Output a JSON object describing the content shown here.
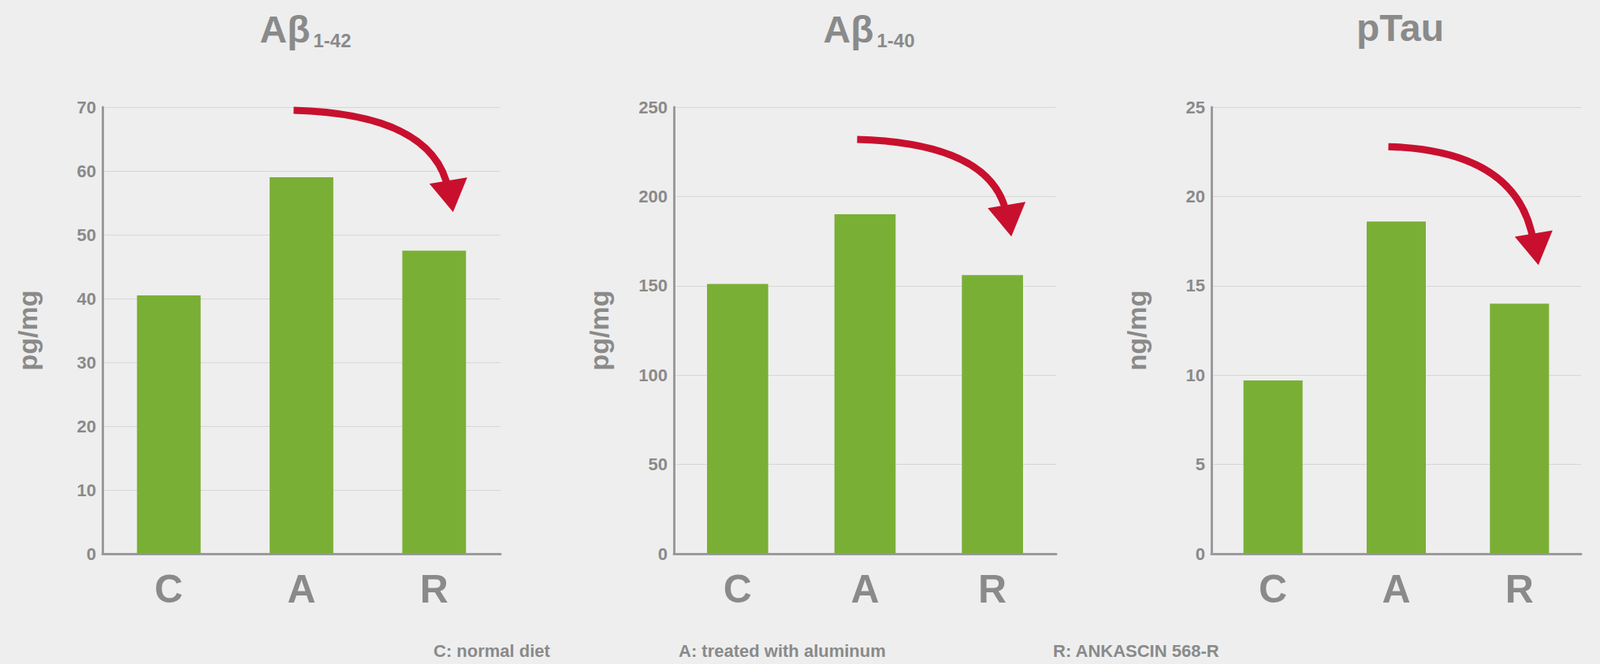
{
  "chart_data": [
    {
      "type": "bar",
      "title": "Aβ 1-42",
      "y_label": "pg/mg",
      "categories": [
        "C",
        "A",
        "R"
      ],
      "values": [
        40.5,
        59,
        47.5
      ],
      "color": "#7aaf35",
      "ylim": [
        0,
        70
      ],
      "yticks": [
        0,
        10,
        20,
        30,
        40,
        50,
        60,
        70
      ],
      "grid": true
    },
    {
      "type": "bar",
      "title": "Aβ 1-40",
      "y_label": "pg/mg",
      "categories": [
        "C",
        "A",
        "R"
      ],
      "values": [
        151,
        190,
        156
      ],
      "color": "#7aaf35",
      "ylim": [
        0,
        250
      ],
      "yticks": [
        0,
        50,
        100,
        150,
        200,
        250
      ],
      "grid": true
    },
    {
      "type": "bar",
      "title": "pTau",
      "y_label": "ng/mg",
      "categories": [
        "C",
        "A",
        "R"
      ],
      "values": [
        9.7,
        18.6,
        14
      ],
      "color": "#7aaf35",
      "ylim": [
        0,
        25
      ],
      "yticks": [
        0,
        5,
        10,
        15,
        20,
        25
      ],
      "grid": true
    }
  ],
  "footnotes": [
    "C: normal diet",
    "A: treated with aluminum",
    "R: ANKASCIN 568-R"
  ]
}
